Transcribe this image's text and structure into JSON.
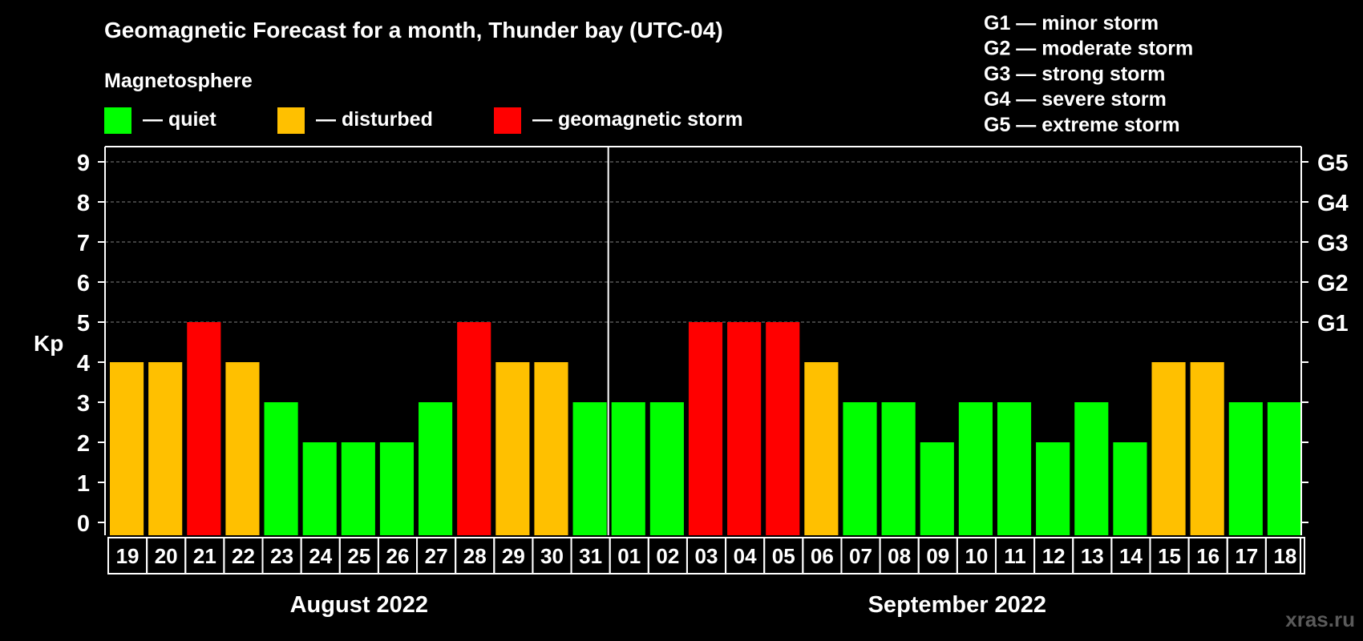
{
  "chart_data": {
    "type": "bar",
    "title": "Geomagnetic Forecast for a month, Thunder bay (UTC-04)",
    "legend": {
      "heading": "Magnetosphere",
      "items": [
        {
          "label": "— quiet",
          "color": "#00ff00"
        },
        {
          "label": "— disturbed",
          "color": "#ffc000"
        },
        {
          "label": "— geomagnetic storm",
          "color": "#ff0000"
        }
      ]
    },
    "storm_scale": [
      "G1 — minor storm",
      "G2 — moderate storm",
      "G3 — strong storm",
      "G4 — severe storm",
      "G5 — extreme storm"
    ],
    "ylabel": "Kp",
    "ylim": [
      0,
      9
    ],
    "yticks": [
      "0",
      "1",
      "2",
      "3",
      "4",
      "5",
      "6",
      "7",
      "8",
      "9"
    ],
    "right_ticks": [
      {
        "kp": 5,
        "label": "G1"
      },
      {
        "kp": 6,
        "label": "G2"
      },
      {
        "kp": 7,
        "label": "G3"
      },
      {
        "kp": 8,
        "label": "G4"
      },
      {
        "kp": 9,
        "label": "G5"
      }
    ],
    "categories": [
      "19",
      "20",
      "21",
      "22",
      "23",
      "24",
      "25",
      "26",
      "27",
      "28",
      "29",
      "30",
      "31",
      "01",
      "02",
      "03",
      "04",
      "05",
      "06",
      "07",
      "08",
      "09",
      "10",
      "11",
      "12",
      "13",
      "14",
      "15",
      "16",
      "17",
      "18"
    ],
    "values": [
      4,
      4,
      5,
      4,
      3,
      2,
      2,
      2,
      3,
      5,
      4,
      4,
      3,
      3,
      3,
      5,
      5,
      5,
      4,
      3,
      3,
      2,
      3,
      3,
      2,
      3,
      2,
      4,
      4,
      3,
      3
    ],
    "months": [
      {
        "label": "August 2022",
        "start_index": 0,
        "end_index": 12
      },
      {
        "label": "September 2022",
        "start_index": 13,
        "end_index": 30
      }
    ],
    "grid": true,
    "colors": {
      "quiet": "#00ff00",
      "disturbed": "#ffc000",
      "storm": "#ff0000",
      "grid": "#808080",
      "axis": "#ffffff"
    }
  },
  "watermark": "xras.ru"
}
